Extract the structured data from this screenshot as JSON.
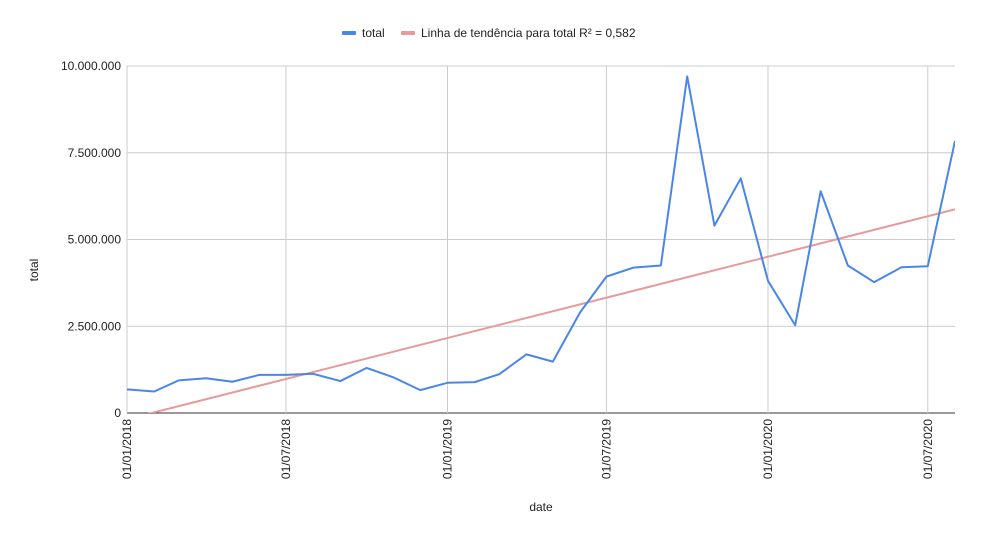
{
  "chart_data": {
    "type": "line",
    "xlabel": "date",
    "ylabel": "total",
    "xlim": [
      "2018-01-01",
      "2020-08-01"
    ],
    "ylim": [
      0,
      10000000
    ],
    "x_ticks": [
      "01/01/2018",
      "01/07/2018",
      "01/01/2019",
      "01/07/2019",
      "01/01/2020",
      "01/07/2020"
    ],
    "y_ticks": [
      "0",
      "2.500.000",
      "5.000.000",
      "7.500.000",
      "10.000.000"
    ],
    "grid": true,
    "legend_position": "top",
    "series": [
      {
        "name": "total",
        "color": "#4a86e8",
        "x": [
          "2018-01-01",
          "2018-02-01",
          "2018-03-01",
          "2018-04-01",
          "2018-05-01",
          "2018-06-01",
          "2018-07-01",
          "2018-08-01",
          "2018-09-01",
          "2018-10-01",
          "2018-11-01",
          "2018-12-01",
          "2019-01-01",
          "2019-02-01",
          "2019-03-01",
          "2019-04-01",
          "2019-05-01",
          "2019-06-01",
          "2019-07-01",
          "2019-08-01",
          "2019-09-01",
          "2019-10-01",
          "2019-11-01",
          "2019-12-01",
          "2020-01-01",
          "2020-02-01",
          "2020-03-01",
          "2020-04-01",
          "2020-05-01",
          "2020-06-01",
          "2020-07-01",
          "2020-08-01"
        ],
        "values": [
          680000,
          620000,
          940000,
          1000000,
          900000,
          1100000,
          1100000,
          1130000,
          920000,
          1300000,
          1020000,
          660000,
          870000,
          890000,
          1120000,
          1690000,
          1480000,
          2900000,
          3930000,
          4190000,
          4250000,
          9700000,
          5400000,
          6760000,
          3810000,
          2530000,
          6390000,
          4250000,
          3770000,
          4200000,
          4230000,
          7840000
        ]
      },
      {
        "name": "Linha de tendência para total R² = 0,582",
        "color": "#e69a99",
        "trendline": true,
        "x": [
          "2018-01-01",
          "2020-08-01"
        ],
        "values": [
          -180000,
          5870000
        ]
      }
    ]
  }
}
